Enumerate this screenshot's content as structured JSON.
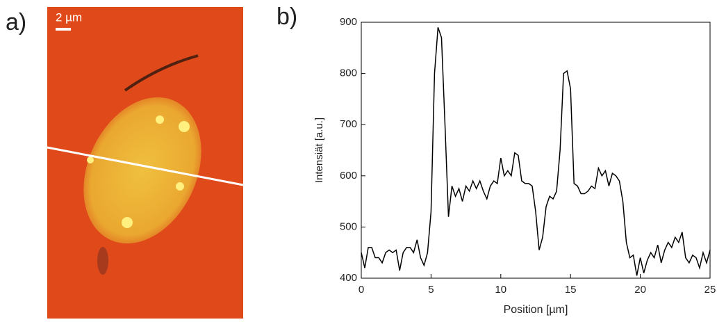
{
  "panels": {
    "a": {
      "label": "a)",
      "scale_bar": "2 µm"
    },
    "b": {
      "label": "b)"
    }
  },
  "chart_data": {
    "type": "line",
    "xlabel": "Position [µm]",
    "ylabel": "Intensiät [a.u.]",
    "color": "#000000",
    "x": [
      0,
      0.25,
      0.5,
      0.75,
      1,
      1.25,
      1.5,
      1.75,
      2,
      2.25,
      2.5,
      2.75,
      3,
      3.25,
      3.5,
      3.75,
      4,
      4.25,
      4.5,
      4.75,
      5,
      5.25,
      5.5,
      5.75,
      6,
      6.25,
      6.5,
      6.75,
      7,
      7.25,
      7.5,
      7.75,
      8,
      8.25,
      8.5,
      8.75,
      9,
      9.25,
      9.5,
      9.75,
      10,
      10.25,
      10.5,
      10.75,
      11,
      11.25,
      11.5,
      11.75,
      12,
      12.25,
      12.5,
      12.75,
      13,
      13.25,
      13.5,
      13.75,
      14,
      14.25,
      14.5,
      14.75,
      15,
      15.25,
      15.5,
      15.75,
      16,
      16.25,
      16.5,
      16.75,
      17,
      17.25,
      17.5,
      17.75,
      18,
      18.25,
      18.5,
      18.75,
      19,
      19.25,
      19.5,
      19.75,
      20,
      20.25,
      20.5,
      20.75,
      21,
      21.25,
      21.5,
      21.75,
      22,
      22.25,
      22.5,
      22.75,
      23,
      23.25,
      23.5,
      23.75,
      24,
      24.25,
      24.5,
      24.75,
      25
    ],
    "values": [
      450,
      420,
      460,
      460,
      440,
      440,
      430,
      450,
      455,
      450,
      455,
      415,
      450,
      460,
      460,
      450,
      475,
      440,
      425,
      450,
      530,
      800,
      890,
      870,
      700,
      520,
      580,
      560,
      575,
      550,
      580,
      570,
      590,
      575,
      590,
      570,
      555,
      580,
      590,
      585,
      635,
      600,
      610,
      600,
      645,
      640,
      590,
      585,
      585,
      580,
      530,
      455,
      480,
      540,
      560,
      555,
      570,
      650,
      800,
      805,
      770,
      585,
      580,
      565,
      565,
      570,
      580,
      575,
      615,
      600,
      610,
      580,
      605,
      600,
      590,
      550,
      470,
      440,
      445,
      405,
      440,
      410,
      435,
      450,
      440,
      465,
      430,
      455,
      470,
      460,
      480,
      470,
      490,
      440,
      430,
      445,
      440,
      420,
      450,
      430,
      455
    ],
    "xlim": [
      0,
      25
    ],
    "xticks": [
      0,
      5,
      10,
      15,
      20,
      25
    ],
    "ylim": [
      400,
      900
    ],
    "yticks": [
      400,
      500,
      600,
      700,
      800,
      900
    ]
  }
}
